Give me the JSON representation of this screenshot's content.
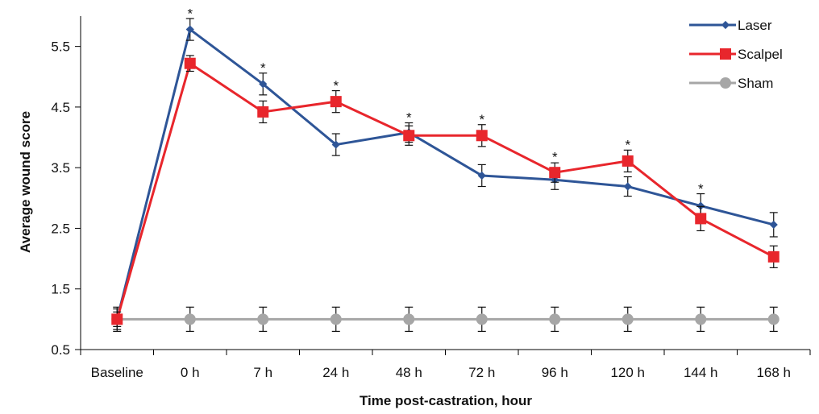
{
  "chart_data": {
    "type": "line",
    "xlabel": "Time post-castration, hour",
    "ylabel": "Average wound score",
    "categories": [
      "Baseline",
      "0 h",
      "7 h",
      "24 h",
      "48 h",
      "72 h",
      "96 h",
      "120 h",
      "144 h",
      "168 h"
    ],
    "ylim": [
      0.5,
      6.0
    ],
    "yticks": [
      "0.5",
      "1.5",
      "2.5",
      "3.5",
      "4.5",
      "5.5"
    ],
    "grid": false,
    "legend_position": "top-right",
    "series": [
      {
        "name": "Laser",
        "color": "#2e5597",
        "marker": "diamond",
        "values": [
          1.0,
          5.78,
          4.88,
          3.88,
          4.08,
          3.37,
          3.3,
          3.19,
          2.87,
          2.56
        ],
        "errors": [
          0.17,
          0.18,
          0.18,
          0.18,
          0.16,
          0.18,
          0.16,
          0.16,
          0.2,
          0.2
        ]
      },
      {
        "name": "Scalpel",
        "color": "#e8262c",
        "marker": "square",
        "values": [
          1.0,
          5.22,
          4.42,
          4.59,
          4.03,
          4.03,
          3.42,
          3.61,
          2.66,
          2.03
        ],
        "errors": [
          0.12,
          0.13,
          0.18,
          0.18,
          0.16,
          0.18,
          0.16,
          0.18,
          0.2,
          0.18
        ]
      },
      {
        "name": "Sham",
        "color": "#a6a6a6",
        "marker": "circle",
        "values": [
          1.0,
          1.0,
          1.0,
          1.0,
          1.0,
          1.0,
          1.0,
          1.0,
          1.0,
          1.0
        ],
        "errors": [
          0.2,
          0.2,
          0.2,
          0.2,
          0.2,
          0.2,
          0.2,
          0.2,
          0.2,
          0.2
        ]
      }
    ],
    "annotations": [
      {
        "text": "*",
        "category": "0 h",
        "y": 5.97
      },
      {
        "text": "*",
        "category": "7 h",
        "y": 5.07
      },
      {
        "text": "*",
        "category": "24 h",
        "y": 4.78
      },
      {
        "text": "*",
        "category": "48 h",
        "y": 4.25
      },
      {
        "text": "*",
        "category": "72 h",
        "y": 4.22
      },
      {
        "text": "*",
        "category": "96 h",
        "y": 3.6
      },
      {
        "text": "*",
        "category": "120 h",
        "y": 3.8
      },
      {
        "text": "*",
        "category": "144 h",
        "y": 3.08
      }
    ]
  }
}
